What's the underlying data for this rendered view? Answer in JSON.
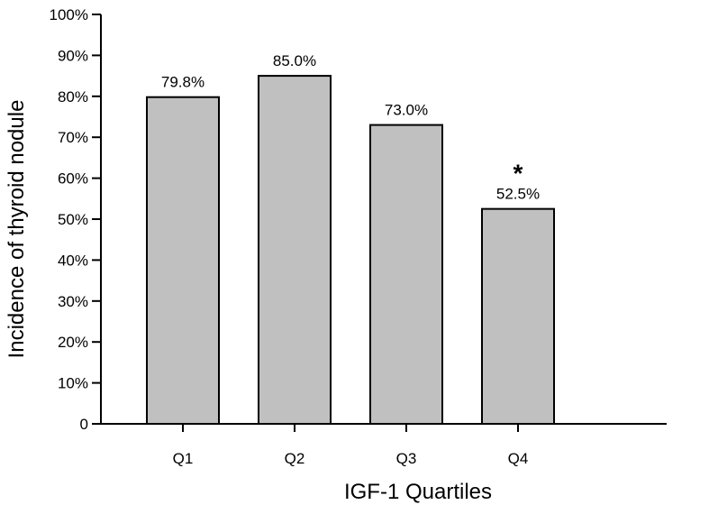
{
  "chart_data": {
    "type": "bar",
    "title": "",
    "xlabel": "IGF-1 Quartiles",
    "ylabel": "Incidence of thyroid nodule",
    "categories": [
      "Q1",
      "Q2",
      "Q3",
      "Q4"
    ],
    "values": [
      79.8,
      85.0,
      73.0,
      52.5
    ],
    "data_labels": [
      "79.8%",
      "85.0%",
      "73.0%",
      "52.5%"
    ],
    "annotations": [
      {
        "category": "Q4",
        "text": "*"
      }
    ],
    "ylim": [
      0,
      100
    ],
    "yticks": [
      0,
      10,
      20,
      30,
      40,
      50,
      60,
      70,
      80,
      90,
      100
    ],
    "ytick_labels": [
      "0",
      "10%",
      "20%",
      "30%",
      "40%",
      "50%",
      "60%",
      "70%",
      "80%",
      "90%",
      "100%"
    ],
    "grid": false,
    "bar_color": "#c0c0c0",
    "bar_edge_color": "#000000"
  }
}
